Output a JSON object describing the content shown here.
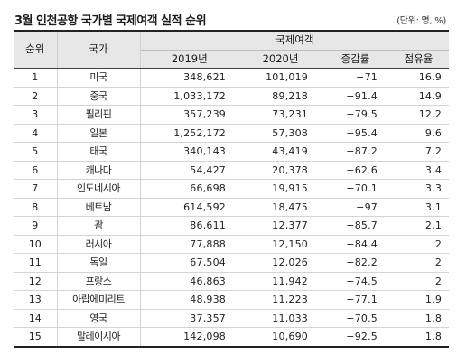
{
  "title": "3월 인천공항 국가별 국제여객 실적 순위",
  "unit": "(단위: 명, %)",
  "table": {
    "header": {
      "rank": "순위",
      "country": "국가",
      "group": "국제여객",
      "y2019": "2019년",
      "y2020": "2020년",
      "change": "증감률",
      "share": "점유율"
    },
    "rows": [
      {
        "rank": "1",
        "country": "미국",
        "y2019": "348,621",
        "y2020": "101,019",
        "change": "−71",
        "share": "16.9"
      },
      {
        "rank": "2",
        "country": "중국",
        "y2019": "1,033,172",
        "y2020": "89,218",
        "change": "−91.4",
        "share": "14.9"
      },
      {
        "rank": "3",
        "country": "필리핀",
        "y2019": "357,239",
        "y2020": "73,231",
        "change": "−79.5",
        "share": "12.2"
      },
      {
        "rank": "4",
        "country": "일본",
        "y2019": "1,252,172",
        "y2020": "57,308",
        "change": "−95.4",
        "share": "9.6"
      },
      {
        "rank": "5",
        "country": "태국",
        "y2019": "340,143",
        "y2020": "43,419",
        "change": "−87.2",
        "share": "7.2"
      },
      {
        "rank": "6",
        "country": "캐나다",
        "y2019": "54,427",
        "y2020": "20,378",
        "change": "−62.6",
        "share": "3.4"
      },
      {
        "rank": "7",
        "country": "인도네시아",
        "y2019": "66,698",
        "y2020": "19,915",
        "change": "−70.1",
        "share": "3.3"
      },
      {
        "rank": "8",
        "country": "베트남",
        "y2019": "614,592",
        "y2020": "18,475",
        "change": "−97",
        "share": "3.1"
      },
      {
        "rank": "9",
        "country": "괌",
        "y2019": "86,611",
        "y2020": "12,377",
        "change": "−85.7",
        "share": "2.1"
      },
      {
        "rank": "10",
        "country": "러시아",
        "y2019": "77,888",
        "y2020": "12,150",
        "change": "−84.4",
        "share": "2"
      },
      {
        "rank": "11",
        "country": "독일",
        "y2019": "67,504",
        "y2020": "12,026",
        "change": "−82.2",
        "share": "2"
      },
      {
        "rank": "12",
        "country": "프랑스",
        "y2019": "46,863",
        "y2020": "11,942",
        "change": "−74.5",
        "share": "2"
      },
      {
        "rank": "13",
        "country": "아랍에미리트",
        "y2019": "48,938",
        "y2020": "11,223",
        "change": "−77.1",
        "share": "1.9"
      },
      {
        "rank": "14",
        "country": "영국",
        "y2019": "37,357",
        "y2020": "11,033",
        "change": "−70.5",
        "share": "1.8"
      },
      {
        "rank": "15",
        "country": "말레이시아",
        "y2019": "142,098",
        "y2020": "10,690",
        "change": "−92.5",
        "share": "1.8"
      }
    ]
  }
}
